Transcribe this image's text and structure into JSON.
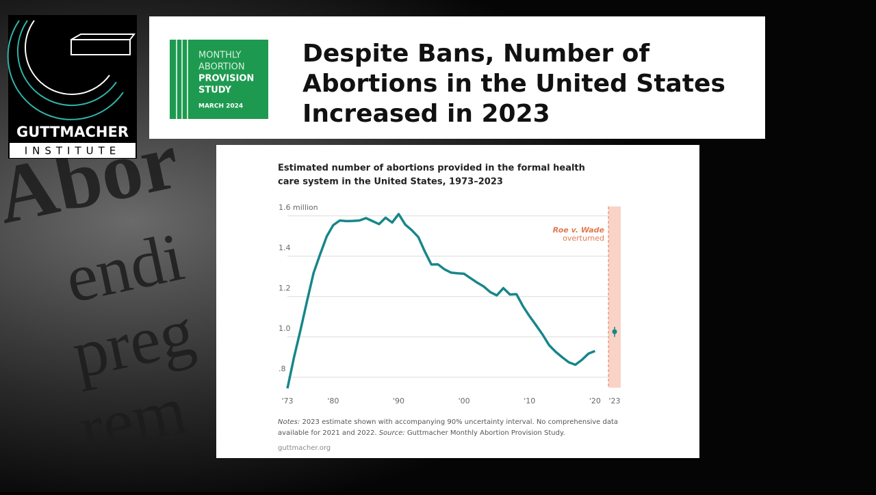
{
  "background_text": [
    "Abor",
    "endi",
    "preg",
    "rem"
  ],
  "logo": {
    "name": "GUTTMACHER",
    "sub": "INSTITUTE"
  },
  "badge": {
    "line1": "MONTHLY",
    "line2": "ABORTION",
    "line3": "PROVISION",
    "line4": "STUDY",
    "date": "MARCH 2024"
  },
  "headline": [
    "Despite Bans, Number of",
    "Abortions in the United States",
    "Increased in 2023"
  ],
  "chart_data": {
    "type": "line",
    "title": [
      "Estimated number of abortions provided in the formal health",
      "care system in the United States, 1973–2023"
    ],
    "x": [
      1973,
      1974,
      1975,
      1976,
      1977,
      1978,
      1979,
      1980,
      1981,
      1982,
      1983,
      1984,
      1985,
      1986,
      1987,
      1988,
      1989,
      1990,
      1991,
      1992,
      1993,
      1994,
      1995,
      1996,
      1997,
      1998,
      1999,
      2000,
      2001,
      2002,
      2003,
      2004,
      2005,
      2006,
      2007,
      2008,
      2009,
      2010,
      2011,
      2012,
      2013,
      2014,
      2015,
      2016,
      2017,
      2018,
      2019,
      2020
    ],
    "series": [
      {
        "name": "Abortions",
        "color": "#17868a",
        "values": [
          0.745,
          0.899,
          1.034,
          1.179,
          1.317,
          1.41,
          1.498,
          1.554,
          1.577,
          1.574,
          1.575,
          1.577,
          1.589,
          1.574,
          1.559,
          1.591,
          1.567,
          1.609,
          1.557,
          1.529,
          1.495,
          1.423,
          1.359,
          1.36,
          1.335,
          1.319,
          1.315,
          1.313,
          1.291,
          1.269,
          1.25,
          1.222,
          1.206,
          1.242,
          1.21,
          1.212,
          1.152,
          1.103,
          1.058,
          1.011,
          0.959,
          0.926,
          0.899,
          0.874,
          0.862,
          0.886,
          0.917,
          0.93
        ]
      }
    ],
    "estimate": {
      "x": 2023,
      "value": 1.026,
      "interval": [
        1.0,
        1.05
      ]
    },
    "xlim": [
      1973,
      2024
    ],
    "ylim": [
      0.745,
      1.65
    ],
    "xticks": [
      {
        "value": 1973,
        "label": "'73"
      },
      {
        "value": 1980,
        "label": "'80"
      },
      {
        "value": 1990,
        "label": "'90"
      },
      {
        "value": 2000,
        "label": "'00"
      },
      {
        "value": 2010,
        "label": "'10"
      },
      {
        "value": 2020,
        "label": "'20"
      },
      {
        "value": 2023,
        "label": "'23"
      }
    ],
    "yticks": [
      {
        "value": 0.8,
        "label": ".8"
      },
      {
        "value": 1.0,
        "label": "1.0"
      },
      1.2,
      1.4,
      {
        "value": 1.6,
        "label": "1.6 million"
      }
    ],
    "grid": true,
    "annotation": [
      "Roe v. Wade",
      "overturned"
    ],
    "notes": {
      "label": "Notes:",
      "text1": "2023 estimate shown with accompanying 90% uncertainty interval. No comprehensive data",
      "text2": "available for 2021 and 2022.",
      "source_label": "Source:",
      "source": "Guttmacher Monthly Abortion Provision Study."
    },
    "url": "guttmacher.org"
  }
}
